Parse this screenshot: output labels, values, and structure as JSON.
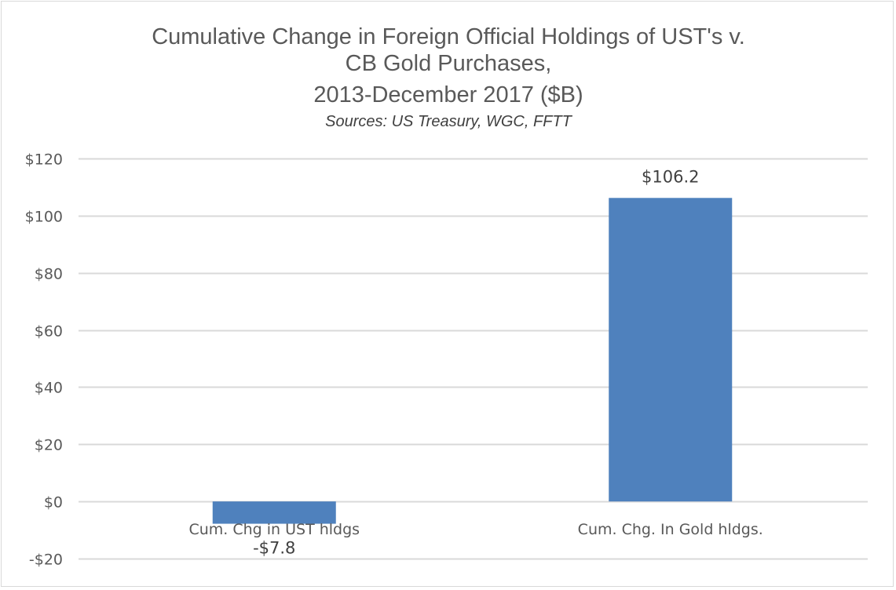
{
  "chart_data": {
    "type": "bar",
    "title_lines": [
      "Cumulative Change in Foreign Official Holdings of UST's v.",
      "CB Gold Purchases,",
      "2013-December 2017 ($B)"
    ],
    "subtitle": "Sources:  US Treasury, WGC, FFTT",
    "categories": [
      "Cum. Chg in UST hldgs",
      "Cum. Chg. In Gold hldgs."
    ],
    "values": [
      -7.8,
      106.2
    ],
    "data_labels": [
      "-$7.8",
      "$106.2"
    ],
    "xlabel": "",
    "ylabel": "",
    "ylim": [
      -20,
      120
    ],
    "yticks": [
      120,
      100,
      80,
      60,
      40,
      20,
      0,
      -20
    ],
    "ytick_labels": [
      "$120",
      "$100",
      "$80",
      "$60",
      "$40",
      "$20",
      "$0",
      "-$20"
    ],
    "grid": true,
    "legend": "none",
    "bar_color": "#4f81bd",
    "gridline_color": "#d9d9d9"
  }
}
